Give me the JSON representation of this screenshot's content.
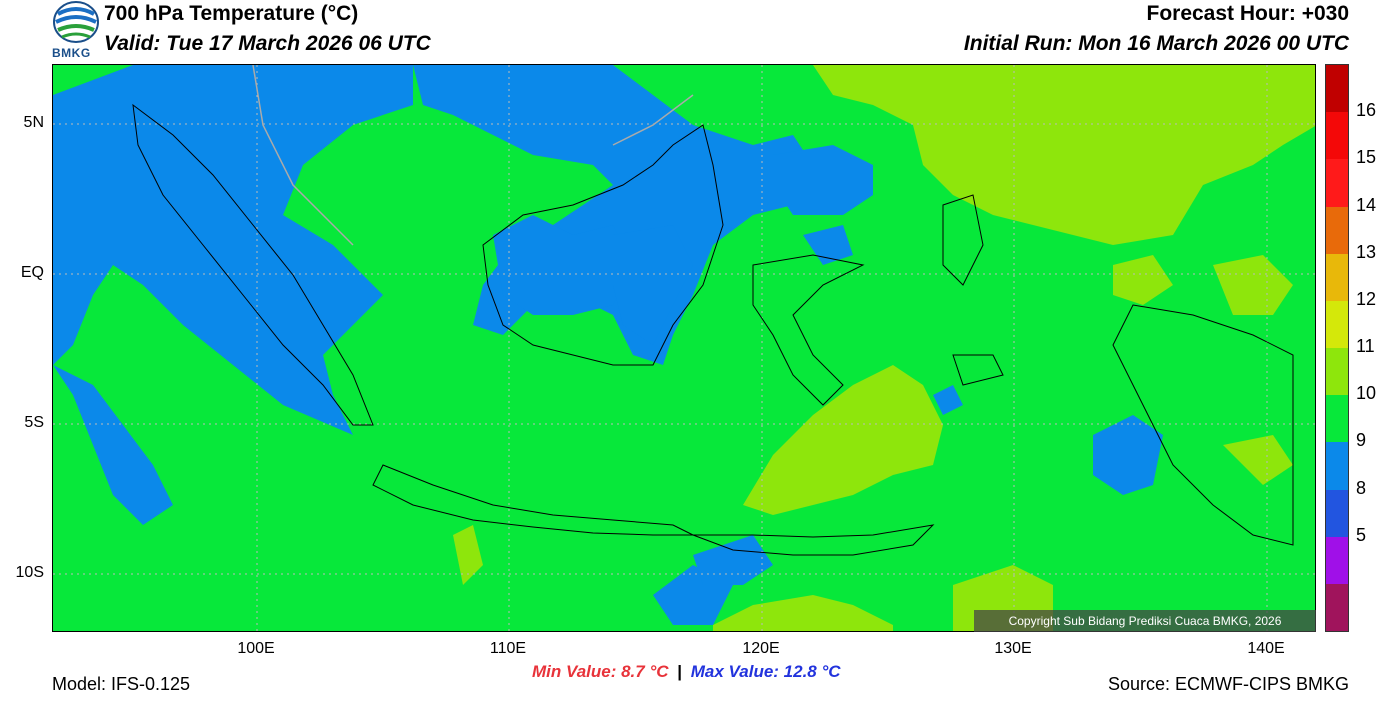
{
  "header": {
    "title": "700 hPa Temperature (°C)",
    "valid": "Valid: Tue 17 March 2026 06 UTC",
    "forecast_hour": "Forecast Hour: +030",
    "initial_run": "Initial Run: Mon 16 March 2026 00 UTC",
    "logo_text": "BMKG"
  },
  "map": {
    "lat_labels": [
      "5N",
      "EQ",
      "5S",
      "10S"
    ],
    "lon_labels": [
      "100E",
      "110E",
      "120E",
      "130E",
      "140E"
    ],
    "copyright": "Copyright Sub Bidang Prediksi Cuaca BMKG, 2026",
    "colors": {
      "t9_10": "#0b89ea",
      "t10_11": "#07e83a",
      "t11_12": "#8ee60c"
    }
  },
  "colorbar": {
    "labels": [
      "16",
      "15",
      "14",
      "13",
      "12",
      "11",
      "10",
      "9",
      "8",
      "5"
    ],
    "segments": [
      "#c00000",
      "#f40808",
      "#ff1a1a",
      "#e86a0a",
      "#e8b80a",
      "#d4e80a",
      "#8ee60c",
      "#07e83a",
      "#0b89ea",
      "#2255e0",
      "#a010e8",
      "#a0145c"
    ]
  },
  "footer": {
    "model": "Model: IFS-0.125",
    "min_value": "Min Value: 8.7 °C",
    "separator": "|",
    "max_value": "Max Value: 12.8 °C",
    "source": "Source: ECMWF-CIPS BMKG"
  }
}
